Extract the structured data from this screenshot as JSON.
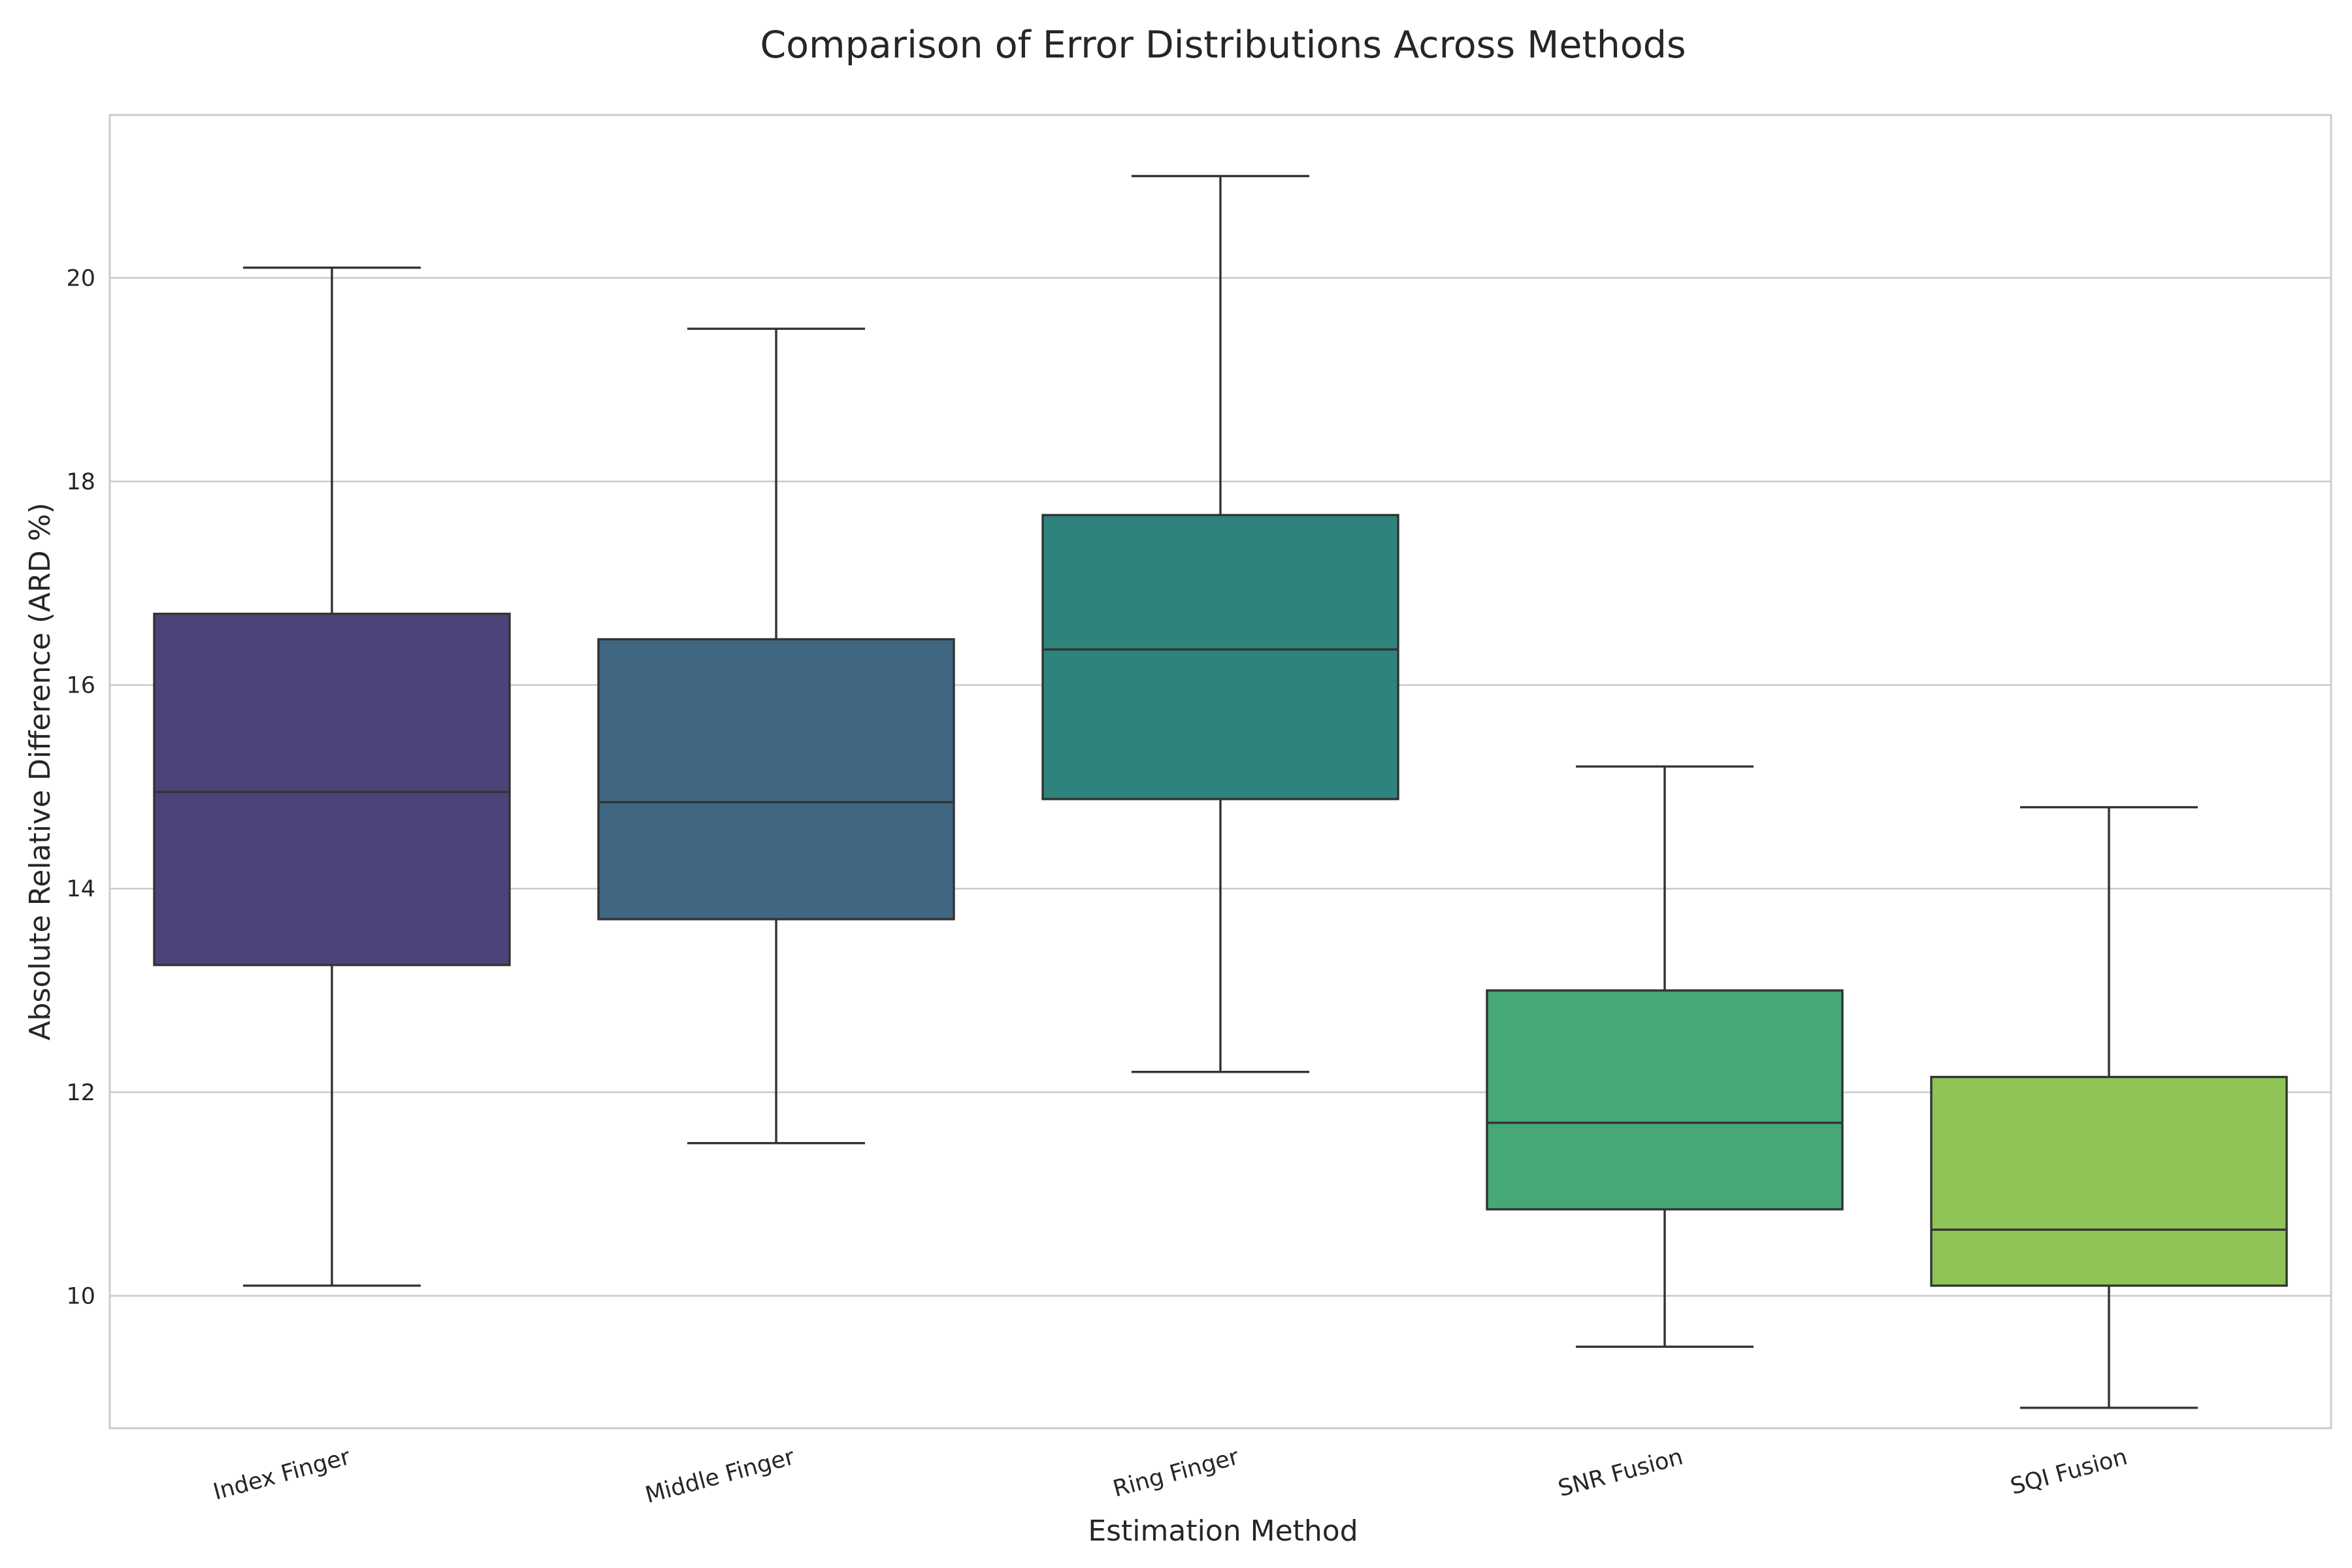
{
  "chart_data": {
    "type": "box",
    "title": "Comparison of Error Distributions Across Methods",
    "xlabel": "Estimation Method",
    "ylabel": "Absolute Relative Difference (ARD %)",
    "ylim": [
      8.7,
      21.6
    ],
    "yticks": [
      10,
      12,
      14,
      16,
      18,
      20
    ],
    "grid": true,
    "categories": [
      "Index Finger",
      "Middle Finger",
      "Ring Finger",
      "SNR Fusion",
      "SQI Fusion"
    ],
    "boxes": [
      {
        "category": "Index Finger",
        "whisker_low": 10.1,
        "q1": 13.25,
        "median": 14.95,
        "q3": 16.7,
        "whisker_high": 20.1,
        "color": "#4c4478"
      },
      {
        "category": "Middle Finger",
        "whisker_low": 11.5,
        "q1": 13.7,
        "median": 14.85,
        "q3": 16.45,
        "whisker_high": 19.5,
        "color": "#3f6781"
      },
      {
        "category": "Ring Finger",
        "whisker_low": 12.2,
        "q1": 14.88,
        "median": 16.35,
        "q3": 17.67,
        "whisker_high": 21.0,
        "color": "#2e837d"
      },
      {
        "category": "SNR Fusion",
        "whisker_low": 9.5,
        "q1": 10.85,
        "median": 11.7,
        "q3": 13.0,
        "whisker_high": 15.2,
        "color": "#45a876"
      },
      {
        "category": "SQI Fusion",
        "whisker_low": 8.9,
        "q1": 10.1,
        "median": 10.65,
        "q3": 12.15,
        "whisker_high": 14.8,
        "color": "#8ec455"
      }
    ]
  }
}
